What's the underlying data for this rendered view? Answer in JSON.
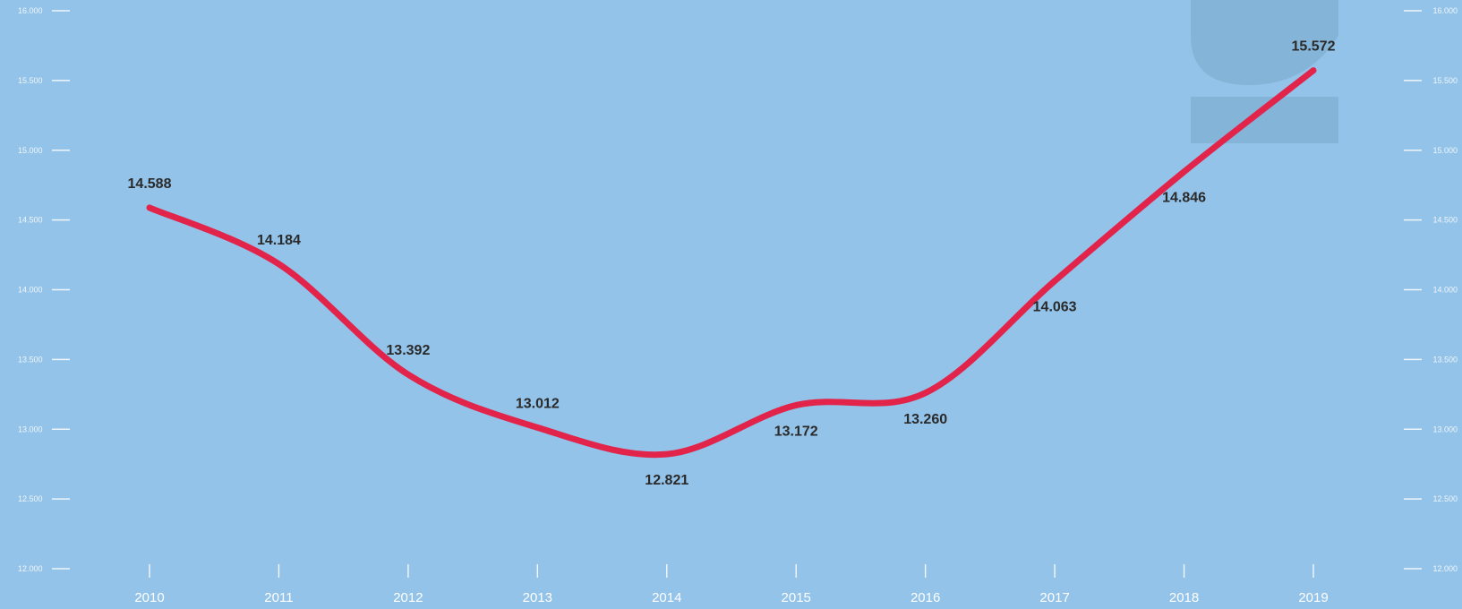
{
  "chart_data": {
    "type": "line",
    "categories": [
      "2010",
      "2011",
      "2012",
      "2013",
      "2014",
      "2015",
      "2016",
      "2017",
      "2018",
      "2019"
    ],
    "series": [
      {
        "values": [
          14.588,
          14.184,
          13.392,
          13.012,
          12.821,
          13.172,
          13.26,
          14.063,
          14.846,
          15.572
        ],
        "value_labels": [
          "14.588",
          "14.184",
          "13.392",
          "13.012",
          "12.821",
          "13.172",
          "13.260",
          "14.063",
          "14.846",
          "15.572"
        ]
      }
    ],
    "ylim": [
      12.0,
      16.0
    ],
    "y_ticks": [
      12.0,
      12.5,
      13.0,
      13.5,
      14.0,
      14.5,
      15.0,
      15.5,
      16.0
    ],
    "y_tick_labels": [
      "12.000",
      "12.500",
      "13.000",
      "13.500",
      "14.000",
      "14.500",
      "15.000",
      "15.500",
      "16.000"
    ],
    "grid": false,
    "colors": {
      "background": "#93c3e9",
      "line": "#e2234a",
      "axis": "#ffffff",
      "label": "#2a2a2a"
    }
  }
}
